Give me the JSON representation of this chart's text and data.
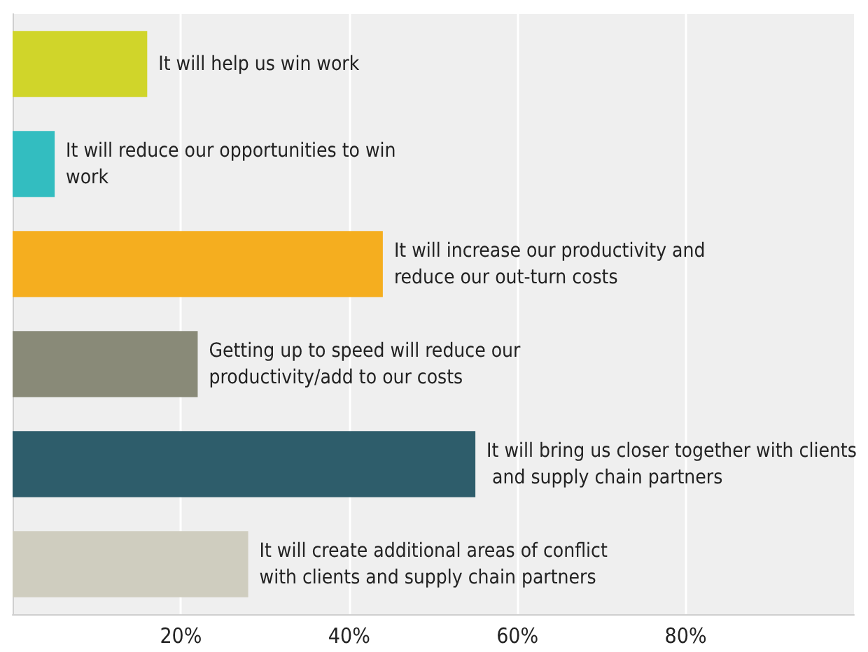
{
  "chart_data": {
    "type": "bar",
    "orientation": "horizontal",
    "categories": [
      "It will help us win work",
      "It will reduce our opportunities to win work",
      "It will increase our productivity and reduce our out-turn costs",
      "Getting up to speed will reduce our productivity/add to our costs",
      "It will bring us closer together with clients and supply chain partners",
      "It will create additional areas of conflict with clients and supply chain partners"
    ],
    "values": [
      16,
      5,
      44,
      22,
      55,
      28
    ],
    "colors": [
      "#d0d52a",
      "#33bdc0",
      "#f5ae1f",
      "#898a78",
      "#2e5d6b",
      "#cfcdbf"
    ],
    "xlim": [
      0,
      100
    ],
    "xticks": [
      {
        "value": 20,
        "label": "20%"
      },
      {
        "value": 40,
        "label": "40%"
      },
      {
        "value": 60,
        "label": "60%"
      },
      {
        "value": 80,
        "label": "80%"
      }
    ],
    "grid": "x",
    "tick_labels": "x"
  }
}
